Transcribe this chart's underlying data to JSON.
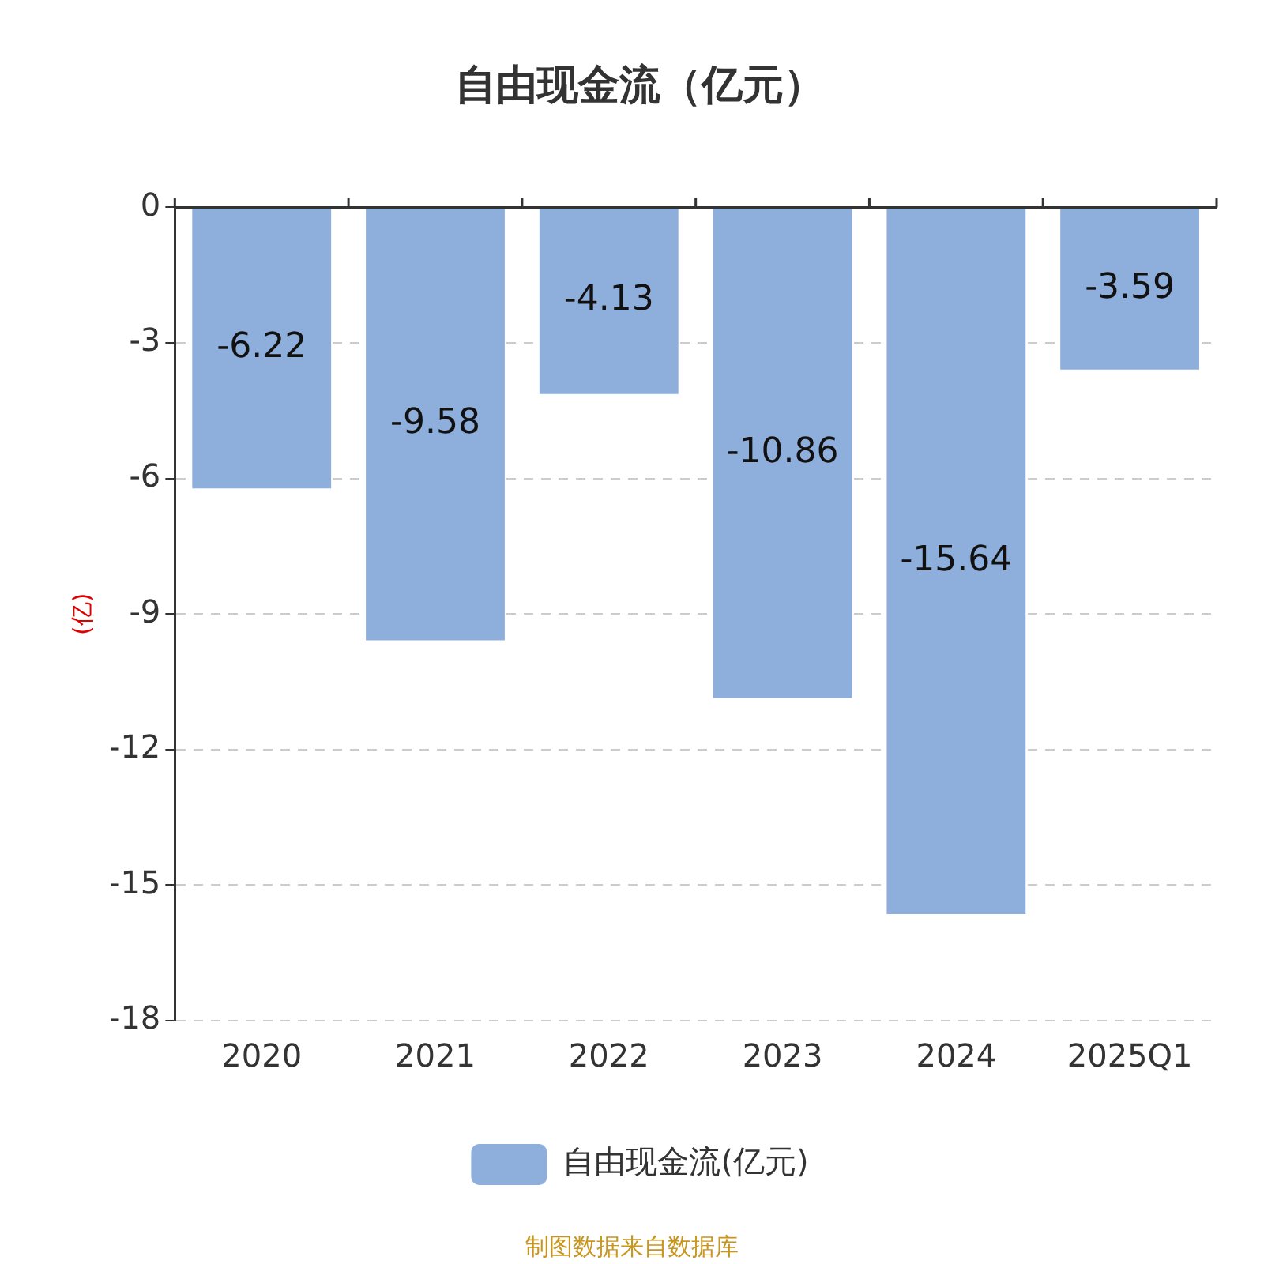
{
  "chart_data": {
    "type": "bar",
    "title": "自由现金流（亿元）",
    "ylabel": "(亿)",
    "categories": [
      "2020",
      "2021",
      "2022",
      "2023",
      "2024",
      "2025Q1"
    ],
    "series": [
      {
        "name": "自由现金流(亿元)",
        "color": "#8eaedb",
        "values": [
          -6.22,
          -9.58,
          -4.13,
          -10.86,
          -15.64,
          -3.59
        ]
      }
    ],
    "ylim": [
      -18,
      0
    ],
    "yticks": [
      0,
      -3,
      -6,
      -9,
      -12,
      -15,
      -18
    ],
    "grid": "y",
    "legend": "bottom",
    "data_labels": true,
    "annotations": [
      "制图数据来自数据库"
    ]
  }
}
